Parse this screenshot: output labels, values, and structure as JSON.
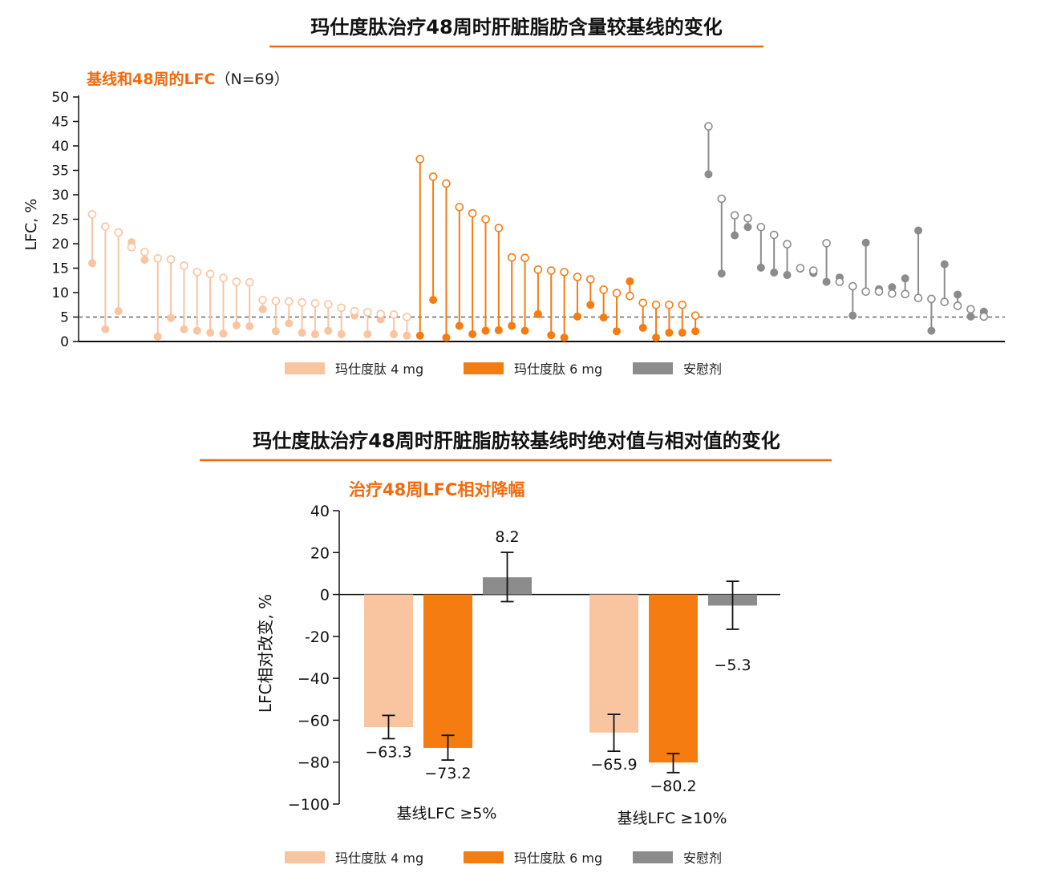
{
  "colors": {
    "mg4": "#f9c4a0",
    "mg6": "#f57c10",
    "placebo": "#8c8c8c",
    "accent": "#f26a0f"
  },
  "chart_data": [
    {
      "type": "scatter",
      "title": "玛仕度肽治疗48周时肝脏脂肪含量较基线的变化",
      "subtitle": "基线和48周的LFC",
      "subtitle_n": "（N=69）",
      "ylabel": "LFC, %",
      "ylim": [
        0,
        50
      ],
      "yticks": [
        0,
        5,
        10,
        15,
        20,
        25,
        30,
        35,
        40,
        45,
        50
      ],
      "reference_line": 5,
      "legend": [
        "玛仕度肽 4 mg",
        "玛仕度肽 6 mg",
        "安慰剂"
      ],
      "series": [
        {
          "name": "玛仕度肽 4 mg",
          "baseline": [
            26,
            23.5,
            22.3,
            19.3,
            18.3,
            17,
            16.8,
            15.5,
            14.2,
            13.8,
            13,
            12.2,
            12.1,
            8.5,
            8.3,
            8.2,
            8,
            7.8,
            7.6,
            6.9,
            6.2,
            6,
            5.6,
            5.5,
            5
          ],
          "week48": [
            16,
            2.5,
            6.2,
            20.3,
            16.7,
            1,
            4.8,
            2.5,
            2.2,
            1.8,
            1.6,
            3.3,
            3.1,
            6.6,
            2.1,
            3.7,
            1.8,
            1.5,
            2.2,
            1.5,
            5.3,
            1.5,
            4.5,
            1.5,
            1.2
          ]
        },
        {
          "name": "玛仕度肽 6 mg",
          "baseline": [
            37.3,
            33.7,
            32.3,
            27.5,
            26.2,
            25,
            23.2,
            17.2,
            17.1,
            14.7,
            14.5,
            14.2,
            13.2,
            12.7,
            10.6,
            9.9,
            9.3,
            7.9,
            7.5,
            7.5,
            7.5,
            5.3
          ],
          "week48": [
            1.2,
            8.5,
            0.8,
            3.2,
            1.5,
            2.2,
            2.3,
            3.2,
            2.2,
            5.6,
            1.3,
            0.8,
            5.1,
            7.5,
            4.9,
            2.1,
            12.3,
            2.8,
            0.8,
            1.8,
            1.8,
            2.1
          ]
        },
        {
          "name": "安慰剂",
          "baseline": [
            44,
            29.2,
            25.8,
            25.2,
            23.4,
            21.8,
            19.9,
            15,
            14.5,
            20.1,
            12.2,
            11.3,
            10.2,
            10.2,
            9.8,
            9.7,
            8.9,
            8.7,
            8.1,
            7.3,
            6.6,
            5.1
          ],
          "week48": [
            34.2,
            13.9,
            21.7,
            23.4,
            15.1,
            14.1,
            13.6,
            14.9,
            14,
            12.2,
            13.1,
            5.3,
            20.2,
            10.7,
            11.1,
            12.9,
            22.7,
            2.2,
            15.8,
            9.6,
            5.1,
            6.1
          ]
        }
      ]
    },
    {
      "type": "bar",
      "title": "玛仕度肽治疗48周时肝脏脂肪较基线时绝对值与相对值的变化",
      "subtitle": "治疗48周LFC相对降幅",
      "ylabel": "LFC相对改变, %",
      "ylim": [
        -100,
        40
      ],
      "yticks": [
        "−100",
        "−80",
        "−60",
        "−40",
        "-20",
        "0",
        "20",
        "40"
      ],
      "ytick_values": [
        -100,
        -80,
        -60,
        -40,
        -20,
        0,
        20,
        40
      ],
      "categories": [
        "基线LFC ≥5%",
        "基线LFC ≥10%"
      ],
      "legend": [
        "玛仕度肽 4 mg",
        "玛仕度肽 6 mg",
        "安慰剂"
      ],
      "series": [
        {
          "name": "玛仕度肽 4 mg",
          "values": [
            -63.3,
            -65.9
          ],
          "labels": [
            "−63.3",
            "−65.9"
          ],
          "err_high": [
            -57.7,
            -57.2
          ],
          "err_low": [
            -68.8,
            -74.8
          ]
        },
        {
          "name": "玛仕度肽 6 mg",
          "values": [
            -73.2,
            -80.2
          ],
          "labels": [
            "−73.2",
            "−80.2"
          ],
          "err_high": [
            -67.2,
            -75.9
          ],
          "err_low": [
            -79,
            -85
          ]
        },
        {
          "name": "安慰剂",
          "values": [
            8.2,
            -5.3
          ],
          "labels": [
            "8.2",
            "−5.3"
          ],
          "err_high": [
            20.1,
            6.3
          ],
          "err_low": [
            -3.4,
            -16.6
          ]
        }
      ]
    }
  ]
}
